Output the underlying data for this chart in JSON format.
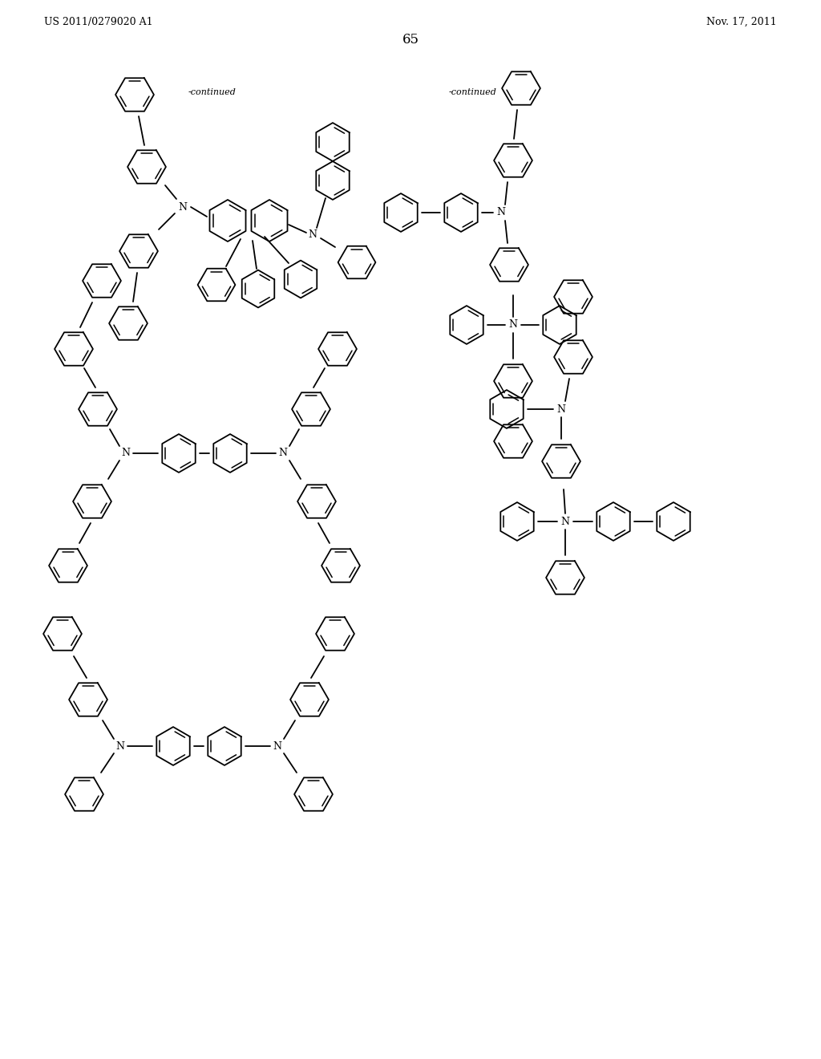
{
  "background_color": "#ffffff",
  "page_number": "65",
  "header_left": "US 2011/0279020 A1",
  "header_right": "Nov. 17, 2011",
  "continued_label_1": "-continued",
  "continued_label_2": "-continued",
  "header_fontsize": 9,
  "page_fontsize": 12,
  "label_fontsize": 8
}
